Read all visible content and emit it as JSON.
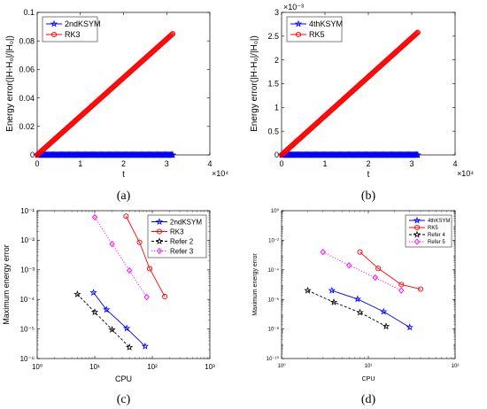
{
  "chart_data": [
    {
      "id": "a",
      "type": "line",
      "caption": "(a)",
      "xscale": "linear",
      "yscale": "linear",
      "xlim": [
        0,
        40000
      ],
      "ylim": [
        0,
        0.1
      ],
      "xticks": [
        0,
        10000,
        20000,
        30000,
        40000
      ],
      "xtick_labels": [
        "0",
        "1",
        "2",
        "3",
        "4"
      ],
      "yticks": [
        0,
        0.02,
        0.04,
        0.06,
        0.08,
        0.1
      ],
      "ytick_labels": [
        "0",
        "0.02",
        "0.04",
        "0.06",
        "0.08",
        "0.1"
      ],
      "x_multiplier": "×10⁴",
      "xlabel": "t",
      "ylabel": "Energy error(|H-H₀|/|H₀|)",
      "legend_position": "top-left",
      "series": [
        {
          "name": "2ndKSYM",
          "color": "#0000ff",
          "marker": "star",
          "linestyle": "solid",
          "x": [
            0,
            31400
          ],
          "y": [
            0,
            0
          ]
        },
        {
          "name": "RK3",
          "color": "#ff0000",
          "marker": "circle",
          "linestyle": "solid",
          "x": [
            0,
            31400
          ],
          "y": [
            0,
            0.085
          ]
        }
      ]
    },
    {
      "id": "b",
      "type": "line",
      "caption": "(b)",
      "xscale": "linear",
      "yscale": "linear",
      "xlim": [
        0,
        40000
      ],
      "ylim": [
        0,
        0.003
      ],
      "xticks": [
        0,
        10000,
        20000,
        30000,
        40000
      ],
      "xtick_labels": [
        "0",
        "1",
        "2",
        "3",
        "4"
      ],
      "yticks": [
        0,
        0.0005,
        0.001,
        0.0015,
        0.002,
        0.0025,
        0.003
      ],
      "ytick_labels": [
        "0",
        "0.5",
        "1",
        "1.5",
        "2",
        "2.5",
        "3"
      ],
      "x_multiplier": "×10⁴",
      "y_multiplier": "×10⁻³",
      "xlabel": "t",
      "ylabel": "Energy error(|H-H₀|/|H₀|)",
      "legend_position": "top-left",
      "series": [
        {
          "name": "4thKSYM",
          "color": "#0000ff",
          "marker": "star",
          "linestyle": "solid",
          "x": [
            0,
            31400
          ],
          "y": [
            0,
            0
          ]
        },
        {
          "name": "RK5",
          "color": "#ff0000",
          "marker": "circle",
          "linestyle": "solid",
          "x": [
            0,
            31400
          ],
          "y": [
            0,
            0.00258
          ]
        }
      ]
    },
    {
      "id": "c",
      "type": "line",
      "caption": "(c)",
      "xscale": "log",
      "yscale": "log",
      "xlim": [
        1,
        1000
      ],
      "ylim": [
        1e-06,
        0.1
      ],
      "xticks": [
        1,
        10,
        100,
        1000
      ],
      "xtick_labels": [
        "10⁰",
        "10¹",
        "10²",
        "10³"
      ],
      "yticks": [
        1e-06,
        1e-05,
        0.0001,
        0.001,
        0.01,
        0.1
      ],
      "ytick_labels": [
        "10⁻⁶",
        "10⁻⁵",
        "10⁻⁴",
        "10⁻³",
        "10⁻²",
        "10⁻¹"
      ],
      "xlabel": "CPU",
      "ylabel": "Maximum energy error",
      "legend_position": "top-right",
      "series": [
        {
          "name": "2ndKSYM",
          "color": "#0000ff",
          "marker": "star",
          "linestyle": "solid",
          "x": [
            9.5,
            16,
            36,
            75
          ],
          "y": [
            0.00017,
            4.5e-05,
            1.05e-05,
            2.6e-06
          ]
        },
        {
          "name": "RK3",
          "color": "#ff0000",
          "marker": "circle",
          "linestyle": "solid",
          "x": [
            35,
            60,
            90,
            165
          ],
          "y": [
            0.065,
            0.0085,
            0.0011,
            0.000125
          ]
        },
        {
          "name": "Refer 2",
          "color": "#000000",
          "marker": "star",
          "linestyle": "dashed",
          "x": [
            5,
            10,
            20,
            40
          ],
          "y": [
            0.00015,
            3.7e-05,
            9.5e-06,
            2.4e-06
          ]
        },
        {
          "name": "Refer 3",
          "color": "#ff00ff",
          "marker": "diamond",
          "linestyle": "dotted",
          "x": [
            10,
            20,
            40,
            80
          ],
          "y": [
            0.06,
            0.0075,
            0.00095,
            0.00012
          ]
        }
      ]
    },
    {
      "id": "d",
      "type": "line",
      "caption": "(d)",
      "xscale": "log",
      "yscale": "log",
      "xlim": [
        1,
        100
      ],
      "ylim": [
        1e-10,
        1
      ],
      "xticks": [
        1,
        10,
        100
      ],
      "xtick_labels": [
        "10⁰",
        "10¹",
        "10²"
      ],
      "yticks": [
        1e-10,
        1e-08,
        1e-06,
        0.0001,
        0.01,
        1
      ],
      "ytick_labels": [
        "10⁻¹⁰",
        "10⁻⁸",
        "10⁻⁶",
        "10⁻⁴",
        "10⁻²",
        "10⁰"
      ],
      "xlabel": "CPU",
      "ylabel": "Maximum energy error",
      "legend_position": "top-right",
      "series": [
        {
          "name": "4thKSYM",
          "color": "#0000ff",
          "marker": "star",
          "linestyle": "solid",
          "x": [
            3.8,
            7.5,
            15,
            30
          ],
          "y": [
            4e-06,
            1.05e-06,
            1.5e-07,
            1.3e-08
          ]
        },
        {
          "name": "RK5",
          "color": "#ff0000",
          "marker": "circle",
          "linestyle": "solid",
          "x": [
            8,
            13,
            24,
            40
          ],
          "y": [
            0.0016,
            0.000125,
            1e-05,
            5e-06
          ]
        },
        {
          "name": "Refer 4",
          "color": "#000000",
          "marker": "star",
          "linestyle": "dashed",
          "x": [
            2,
            4,
            8,
            16
          ],
          "y": [
            4e-06,
            6.5e-07,
            1.3e-07,
            1.5e-08
          ]
        },
        {
          "name": "Refer 5",
          "color": "#ff00ff",
          "marker": "diamond",
          "linestyle": "dotted",
          "x": [
            3,
            6,
            12,
            24
          ],
          "y": [
            0.0016,
            0.0002,
            3e-05,
            4e-06
          ]
        }
      ]
    }
  ]
}
